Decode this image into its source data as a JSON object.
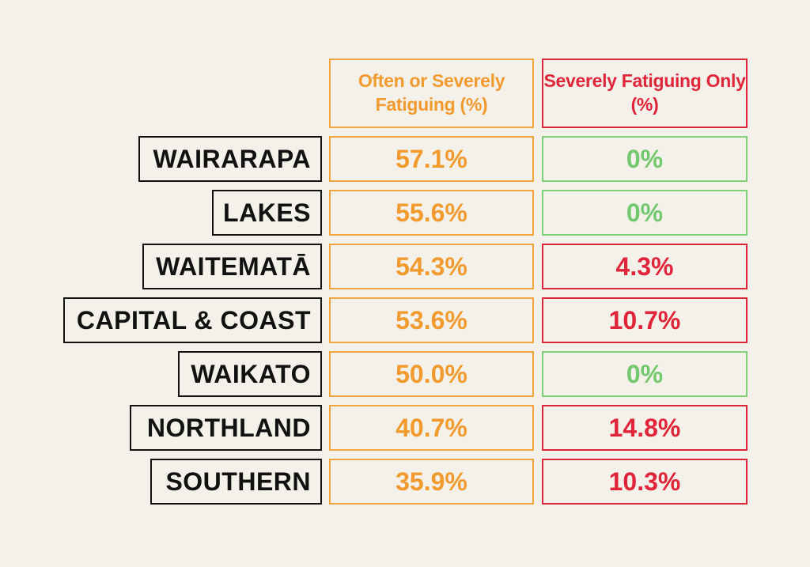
{
  "colors": {
    "background": "#f3f1e9",
    "orange": "#f29a2e",
    "red": "#e0253a",
    "green": "#72c86c",
    "black": "#111111"
  },
  "chart_data": {
    "type": "table",
    "columns": [
      "Often or Severely Fatiguing (%)",
      "Severely Fatiguing Only (%)"
    ],
    "rows": [
      {
        "region": "WAIRARAPA",
        "often_or_severe": "57.1%",
        "severe_only": "0%",
        "severe_color": "green"
      },
      {
        "region": "LAKES",
        "often_or_severe": "55.6%",
        "severe_only": "0%",
        "severe_color": "green"
      },
      {
        "region": "WAITEMATĀ",
        "often_or_severe": "54.3%",
        "severe_only": "4.3%",
        "severe_color": "red"
      },
      {
        "region": "CAPITAL & COAST",
        "often_or_severe": "53.6%",
        "severe_only": "10.7%",
        "severe_color": "red"
      },
      {
        "region": "WAIKATO",
        "often_or_severe": "50.0%",
        "severe_only": "0%",
        "severe_color": "green"
      },
      {
        "region": "NORTHLAND",
        "often_or_severe": "40.7%",
        "severe_only": "14.8%",
        "severe_color": "red"
      },
      {
        "region": "SOUTHERN",
        "often_or_severe": "35.9%",
        "severe_only": "10.3%",
        "severe_color": "red"
      }
    ]
  }
}
